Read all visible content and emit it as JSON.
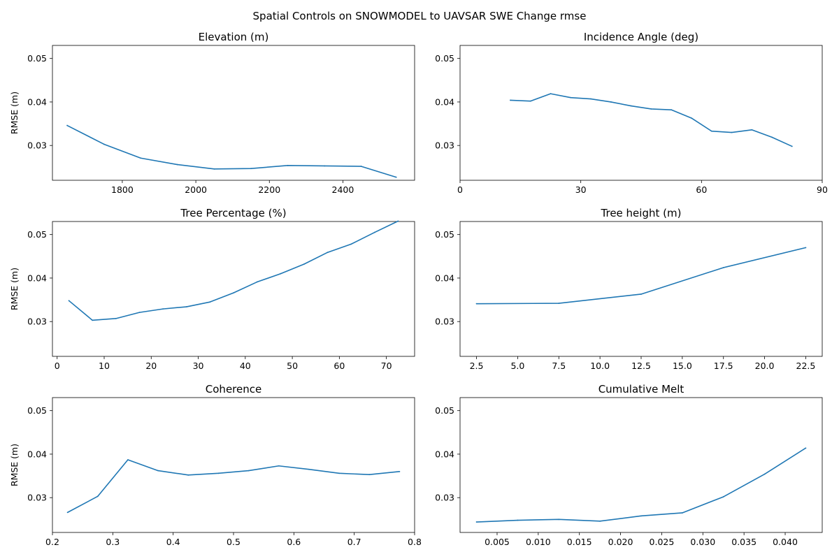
{
  "figure": {
    "suptitle": "Spatial Controls on SNOWMODEL to UAVSAR SWE Change rmse"
  },
  "chart_data": [
    {
      "type": "line",
      "title": "Elevation (m)",
      "xlabel": "",
      "ylabel": "RMSE (m)",
      "xlim": [
        1610,
        2595
      ],
      "ylim": [
        0.022,
        0.053
      ],
      "xticks": [
        1800,
        2000,
        2200,
        2400
      ],
      "xtick_labels": [
        "1800",
        "2000",
        "2200",
        "2400"
      ],
      "yticks": [
        0.03,
        0.04,
        0.05
      ],
      "ytick_labels": [
        "0.03",
        "0.04",
        "0.05"
      ],
      "series": [
        {
          "color": "#1f77b4",
          "x": [
            1650,
            1750,
            1850,
            1950,
            2050,
            2150,
            2250,
            2350,
            2450,
            2545
          ],
          "y": [
            0.0346,
            0.0303,
            0.0271,
            0.0256,
            0.0246,
            0.0247,
            0.0254,
            0.0253,
            0.0252,
            0.0227
          ]
        }
      ]
    },
    {
      "type": "line",
      "title": "Incidence Angle (deg)",
      "xlabel": "",
      "ylabel": "",
      "xlim": [
        0,
        90
      ],
      "ylim": [
        0.022,
        0.053
      ],
      "xticks": [
        0,
        30,
        60,
        90
      ],
      "xtick_labels": [
        "0",
        "30",
        "60",
        "90"
      ],
      "yticks": [
        0.03,
        0.04,
        0.05
      ],
      "ytick_labels": [
        "0.03",
        "0.04",
        "0.05"
      ],
      "series": [
        {
          "color": "#1f77b4",
          "x": [
            12.5,
            17.5,
            22.5,
            27.5,
            32.5,
            37.5,
            42.5,
            47.5,
            52.5,
            57.5,
            62.5,
            67.5,
            72.5,
            77.5,
            82.5
          ],
          "y": [
            0.0404,
            0.0402,
            0.0419,
            0.041,
            0.0407,
            0.04,
            0.0391,
            0.0384,
            0.0382,
            0.0363,
            0.0333,
            0.033,
            0.0336,
            0.0319,
            0.0298
          ]
        }
      ]
    },
    {
      "type": "line",
      "title": "Tree Percentage (%)",
      "xlabel": "",
      "ylabel": "RMSE (m)",
      "xlim": [
        -1,
        76
      ],
      "ylim": [
        0.022,
        0.053
      ],
      "xticks": [
        0,
        10,
        20,
        30,
        40,
        50,
        60,
        70
      ],
      "xtick_labels": [
        "0",
        "10",
        "20",
        "30",
        "40",
        "50",
        "60",
        "70"
      ],
      "yticks": [
        0.03,
        0.04,
        0.05
      ],
      "ytick_labels": [
        "0.03",
        "0.04",
        "0.05"
      ],
      "series": [
        {
          "color": "#1f77b4",
          "x": [
            2.5,
            7.5,
            12.5,
            17.5,
            22.5,
            27.5,
            32.5,
            37.5,
            42.5,
            47.5,
            52.5,
            57.5,
            62.5,
            67.5,
            72.5
          ],
          "y": [
            0.0348,
            0.0303,
            0.0307,
            0.0321,
            0.0329,
            0.0334,
            0.0345,
            0.0366,
            0.0391,
            0.041,
            0.0432,
            0.0459,
            0.0478,
            0.0505,
            0.0531
          ]
        }
      ]
    },
    {
      "type": "line",
      "title": "Tree height (m)",
      "xlabel": "",
      "ylabel": "",
      "xlim": [
        1.5,
        23.5
      ],
      "ylim": [
        0.022,
        0.053
      ],
      "xticks": [
        2.5,
        5.0,
        7.5,
        10.0,
        12.5,
        15.0,
        17.5,
        20.0,
        22.5
      ],
      "xtick_labels": [
        "2.5",
        "5.0",
        "7.5",
        "10.0",
        "12.5",
        "15.0",
        "17.5",
        "20.0",
        "22.5"
      ],
      "yticks": [
        0.03,
        0.04,
        0.05
      ],
      "ytick_labels": [
        "0.03",
        "0.04",
        "0.05"
      ],
      "series": [
        {
          "color": "#1f77b4",
          "x": [
            2.5,
            7.5,
            12.5,
            17.5,
            22.5
          ],
          "y": [
            0.0341,
            0.0342,
            0.0363,
            0.0424,
            0.047
          ]
        }
      ]
    },
    {
      "type": "line",
      "title": "Coherence",
      "xlabel": "",
      "ylabel": "RMSE (m)",
      "xlim": [
        0.2,
        0.8
      ],
      "ylim": [
        0.022,
        0.053
      ],
      "xticks": [
        0.2,
        0.3,
        0.4,
        0.5,
        0.6,
        0.7,
        0.8
      ],
      "xtick_labels": [
        "0.2",
        "0.3",
        "0.4",
        "0.5",
        "0.6",
        "0.7",
        "0.8"
      ],
      "yticks": [
        0.03,
        0.04,
        0.05
      ],
      "ytick_labels": [
        "0.03",
        "0.04",
        "0.05"
      ],
      "series": [
        {
          "color": "#1f77b4",
          "x": [
            0.225,
            0.275,
            0.325,
            0.375,
            0.425,
            0.475,
            0.525,
            0.575,
            0.625,
            0.675,
            0.725,
            0.775
          ],
          "y": [
            0.0266,
            0.0303,
            0.0387,
            0.0362,
            0.0352,
            0.0356,
            0.0362,
            0.0373,
            0.0365,
            0.0356,
            0.0353,
            0.036
          ]
        }
      ]
    },
    {
      "type": "line",
      "title": "Cumulative Melt",
      "xlabel": "",
      "ylabel": "",
      "xlim": [
        0.0005,
        0.0445
      ],
      "ylim": [
        0.022,
        0.053
      ],
      "xticks": [
        0.005,
        0.01,
        0.015,
        0.02,
        0.025,
        0.03,
        0.035,
        0.04
      ],
      "xtick_labels": [
        "0.005",
        "0.010",
        "0.015",
        "0.020",
        "0.025",
        "0.030",
        "0.035",
        "0.040"
      ],
      "yticks": [
        0.03,
        0.04,
        0.05
      ],
      "ytick_labels": [
        "0.03",
        "0.04",
        "0.05"
      ],
      "series": [
        {
          "color": "#1f77b4",
          "x": [
            0.0025,
            0.0075,
            0.0125,
            0.0175,
            0.0225,
            0.0275,
            0.0325,
            0.0375,
            0.0425
          ],
          "y": [
            0.0244,
            0.0248,
            0.025,
            0.0246,
            0.0258,
            0.0265,
            0.0302,
            0.0354,
            0.0414
          ]
        }
      ]
    }
  ]
}
